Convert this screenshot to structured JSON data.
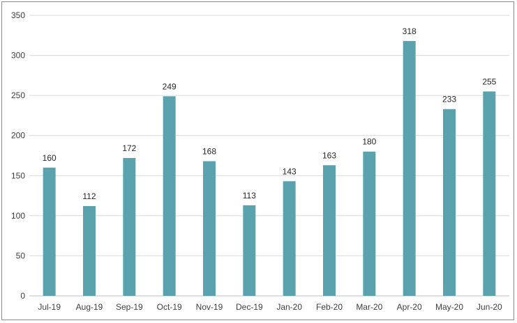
{
  "chart_data": {
    "type": "bar",
    "title": "",
    "xlabel": "",
    "ylabel": "",
    "categories": [
      "Jul-19",
      "Aug-19",
      "Sep-19",
      "Oct-19",
      "Nov-19",
      "Dec-19",
      "Jan-20",
      "Feb-20",
      "Mar-20",
      "Apr-20",
      "May-20",
      "Jun-20"
    ],
    "values": [
      160,
      112,
      172,
      249,
      168,
      113,
      143,
      163,
      180,
      318,
      233,
      255
    ],
    "data_labels": [
      "160",
      "112",
      "172",
      "249",
      "168",
      "113",
      "143",
      "163",
      "180",
      "318",
      "233",
      "255"
    ],
    "ylim": [
      0,
      350
    ],
    "yticks": [
      0,
      50,
      100,
      150,
      200,
      250,
      300,
      350
    ],
    "ytick_labels": [
      "0",
      "50",
      "100",
      "150",
      "200",
      "250",
      "300",
      "350"
    ],
    "grid": true,
    "legend": "none",
    "colors": {
      "bar": "#5aa3ae",
      "grid": "#d9d9d9",
      "axis": "#bfbfbf",
      "border": "#8a8a8a"
    }
  }
}
